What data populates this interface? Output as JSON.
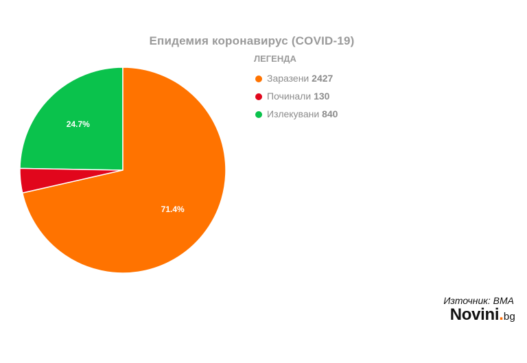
{
  "chart_data": {
    "type": "pie",
    "title": "Епидемия коронавирус (COVID-19)",
    "legend_title": "ЛЕГЕНДА",
    "legend_placement": "top-right",
    "slices": [
      {
        "label": "Заразени",
        "value": 2427,
        "color": "#ff7300",
        "pct_label": "71.4%"
      },
      {
        "label": "Починали",
        "value": 130,
        "color": "#e1061c",
        "pct_label": ""
      },
      {
        "label": "Излекувани",
        "value": 840,
        "color": "#0ac24c",
        "pct_label": "24.7%"
      }
    ]
  },
  "footer": {
    "source": "Източник: ВМА",
    "brand_main": "Novini",
    "brand_dot": ".",
    "brand_tld": "bg"
  }
}
